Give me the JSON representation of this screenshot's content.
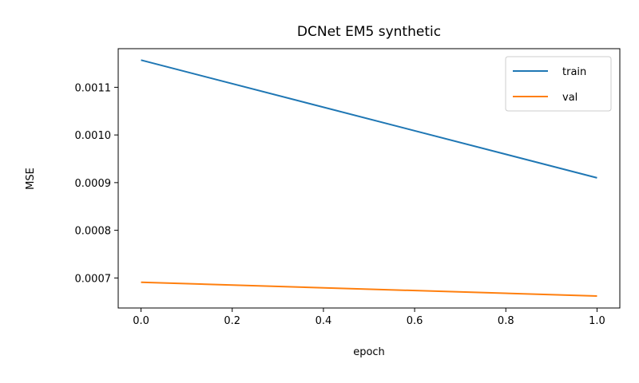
{
  "chart_data": {
    "type": "line",
    "title": "DCNet EM5 synthetic",
    "xlabel": "epoch",
    "ylabel": "MSE",
    "xlim": [
      -0.05,
      1.05
    ],
    "ylim": [
      0.000637,
      0.001181
    ],
    "xticks": [
      0.0,
      0.2,
      0.4,
      0.6,
      0.8,
      1.0
    ],
    "xtick_labels": [
      "0.0",
      "0.2",
      "0.4",
      "0.6",
      "0.8",
      "1.0"
    ],
    "yticks": [
      0.0007,
      0.0008,
      0.0009,
      0.001,
      0.0011
    ],
    "ytick_labels": [
      "0.0007",
      "0.0008",
      "0.0009",
      "0.0010",
      "0.0011"
    ],
    "grid": false,
    "legend_position": "top-right",
    "series": [
      {
        "name": "train",
        "color": "#1f77b4",
        "x": [
          0,
          1
        ],
        "y": [
          0.001157,
          0.00091
        ]
      },
      {
        "name": "val",
        "color": "#ff7f0e",
        "x": [
          0,
          1
        ],
        "y": [
          0.000691,
          0.000662
        ]
      }
    ]
  }
}
